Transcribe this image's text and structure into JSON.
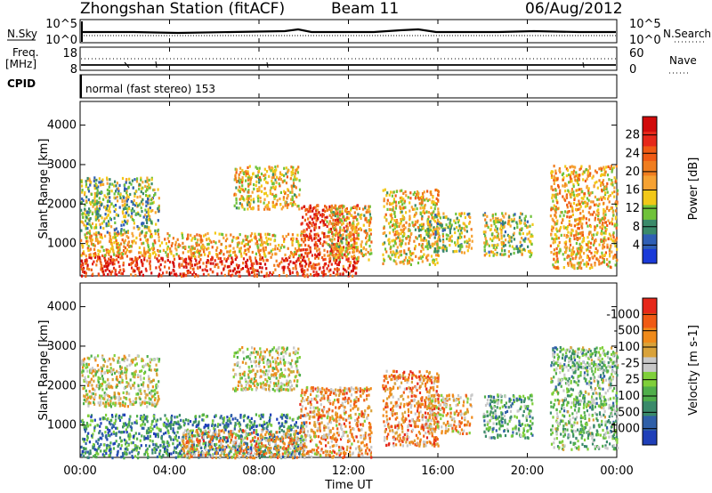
{
  "header": {
    "station_title": "Zhongshan Station (fitACF)",
    "beam_label": "Beam 11",
    "date": "06/Aug/2012"
  },
  "top_panels": {
    "nsky_label": "N.Sky",
    "nsky_ticks": [
      "10^5",
      "10^0"
    ],
    "nsearch_label": "N.Search",
    "nsearch_ticks": [
      "10^5",
      "10^0"
    ],
    "freq_label_line1": "Freq.",
    "freq_label_line2": "[MHz]",
    "freq_ticks": [
      "18",
      "8"
    ],
    "nave_label": "Nave",
    "nave_ticks": [
      "60",
      "0"
    ],
    "cpid_label": "CPID",
    "cpid_value": "normal (fast stereo) 153"
  },
  "chart_data": [
    {
      "type": "heatmap",
      "title": "",
      "xlabel": "Time UT",
      "ylabel": "Slant Range [km]",
      "x_ticks": [
        "00:00",
        "04:00",
        "08:00",
        "12:00",
        "16:00",
        "20:00",
        "00:00"
      ],
      "xlim": [
        0,
        24
      ],
      "y_ticks": [
        1000,
        2000,
        3000,
        4000
      ],
      "ylim": [
        180,
        4600
      ],
      "colorbar": {
        "label": "Power [dB]",
        "tick_labels": [
          "4",
          "8",
          "12",
          "16",
          "20",
          "24",
          "28"
        ],
        "colors": [
          "#1a3ad8",
          "#2f5fb5",
          "#3a8a6a",
          "#6fc23a",
          "#f2c818",
          "#f6a233",
          "#f07d1f",
          "#f05a14",
          "#e6281a",
          "#d10a0a"
        ]
      },
      "regions": [
        {
          "t0": 0.0,
          "t1": 10.0,
          "r0": 200,
          "r1": 700,
          "level": 0.85
        },
        {
          "t0": 0.0,
          "t1": 10.0,
          "r0": 700,
          "r1": 1300,
          "level": 0.55
        },
        {
          "t0": 0.0,
          "t1": 3.5,
          "r0": 1300,
          "r1": 2700,
          "level": 0.35
        },
        {
          "t0": 6.8,
          "t1": 9.8,
          "r0": 1900,
          "r1": 3000,
          "level": 0.5
        },
        {
          "t0": 9.8,
          "t1": 12.4,
          "r0": 200,
          "r1": 2000,
          "level": 0.8
        },
        {
          "t0": 11.0,
          "t1": 13.0,
          "r0": 600,
          "r1": 2000,
          "level": 0.5
        },
        {
          "t0": 13.5,
          "t1": 16.0,
          "r0": 500,
          "r1": 2400,
          "level": 0.5
        },
        {
          "t0": 15.5,
          "t1": 17.5,
          "r0": 800,
          "r1": 1800,
          "level": 0.4
        },
        {
          "t0": 18.0,
          "t1": 20.2,
          "r0": 700,
          "r1": 1800,
          "level": 0.4
        },
        {
          "t0": 21.0,
          "t1": 24.0,
          "r0": 400,
          "r1": 3000,
          "level": 0.55
        }
      ]
    },
    {
      "type": "heatmap",
      "title": "",
      "xlabel": "Time UT",
      "ylabel": "Slant Range [km]",
      "x_ticks": [
        "00:00",
        "04:00",
        "08:00",
        "12:00",
        "16:00",
        "20:00",
        "00:00"
      ],
      "xlim": [
        0,
        24
      ],
      "y_ticks": [
        1000,
        2000,
        3000,
        4000
      ],
      "ylim": [
        180,
        4600
      ],
      "colorbar": {
        "label": "Velocity [m s-1]",
        "tick_labels": [
          "1000",
          "500",
          "100",
          "25",
          "-25",
          "-100",
          "-500",
          "-1000"
        ],
        "colors": [
          "#1f3fb8",
          "#2f5fa8",
          "#3a8a6a",
          "#4fae4a",
          "#7fcf3a",
          "#c8c8c8",
          "#d9a23a",
          "#f08a1a",
          "#f05a14",
          "#e6281a"
        ]
      },
      "regions": [
        {
          "t0": 0.0,
          "t1": 10.0,
          "r0": 200,
          "r1": 1300,
          "level": 0.25
        },
        {
          "t0": 0.0,
          "t1": 3.5,
          "r0": 1500,
          "r1": 2800,
          "level": 0.55
        },
        {
          "t0": 6.8,
          "t1": 9.8,
          "r0": 1900,
          "r1": 3000,
          "level": 0.55
        },
        {
          "t0": 4.5,
          "t1": 10.0,
          "r0": 200,
          "r1": 900,
          "level": 0.7
        },
        {
          "t0": 9.8,
          "t1": 13.0,
          "r0": 200,
          "r1": 2000,
          "level": 0.7
        },
        {
          "t0": 13.5,
          "t1": 16.0,
          "r0": 500,
          "r1": 2400,
          "level": 0.75
        },
        {
          "t0": 15.5,
          "t1": 17.5,
          "r0": 800,
          "r1": 1800,
          "level": 0.65
        },
        {
          "t0": 18.0,
          "t1": 20.2,
          "r0": 700,
          "r1": 1800,
          "level": 0.35
        },
        {
          "t0": 21.0,
          "t1": 24.0,
          "r0": 400,
          "r1": 3000,
          "level": 0.4
        }
      ]
    }
  ]
}
